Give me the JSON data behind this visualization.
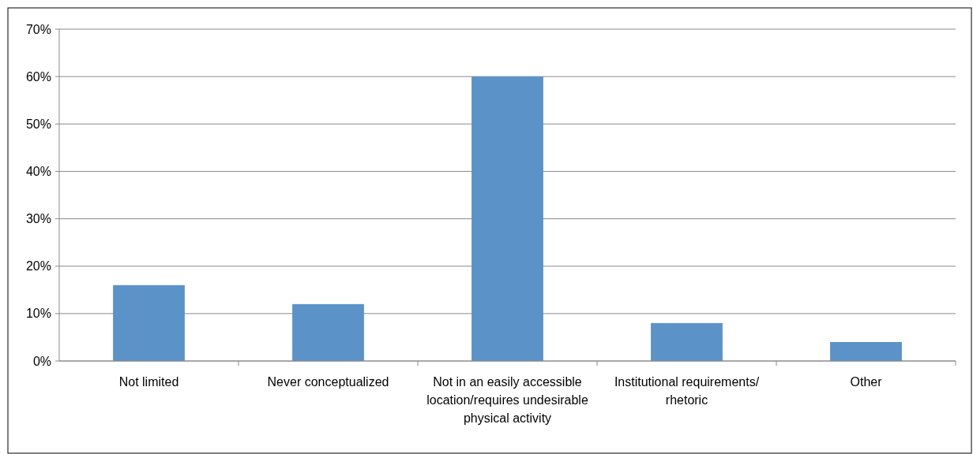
{
  "chart_data": {
    "type": "bar",
    "categories": [
      "Not limited",
      "Never conceptualized",
      "Not in an easily accessible location/requires undesirable physical activity",
      "Institutional requirements/ rhetoric",
      "Other"
    ],
    "values": [
      16,
      12,
      60,
      8,
      4
    ],
    "color": "#5b92c8",
    "ylim": [
      0,
      70
    ],
    "yticks": [
      {
        "value": 0,
        "label": "0%"
      },
      {
        "value": 10,
        "label": "10%"
      },
      {
        "value": 20,
        "label": "20%"
      },
      {
        "value": 30,
        "label": "30%"
      },
      {
        "value": 40,
        "label": "40%"
      },
      {
        "value": 50,
        "label": "50%"
      },
      {
        "value": 60,
        "label": "60%"
      },
      {
        "value": 70,
        "label": "70%"
      }
    ],
    "grid": "y"
  }
}
